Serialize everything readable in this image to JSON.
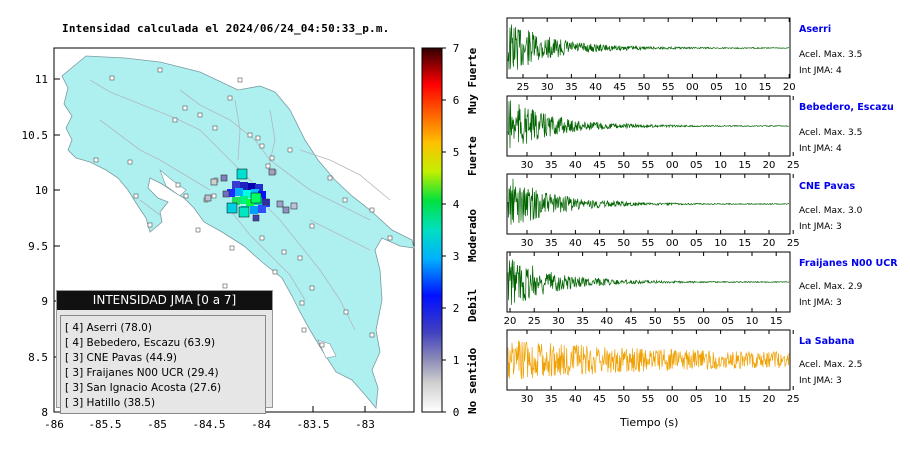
{
  "title": "Intensidad calculada el 2024/06/24_04:50:33_p.m.",
  "map": {
    "lon_ticks": [
      "-86",
      "-85.5",
      "-85",
      "-84.5",
      "-84",
      "-83.5",
      "-83"
    ],
    "lat_ticks": [
      "8",
      "8.5",
      "9",
      "9.5",
      "10",
      "10.5",
      "11"
    ],
    "land_color": "#aef0f0",
    "sea_color": "#ffffff"
  },
  "colorbar": {
    "ticks": [
      "0",
      "1",
      "2",
      "3",
      "4",
      "5",
      "6",
      "7"
    ],
    "categories": [
      "No sentido",
      "Debil",
      "Moderado",
      "Fuerte",
      "Muy Fuerte"
    ]
  },
  "legend": {
    "title": "INTENSIDAD JMA [0 a 7]",
    "entries": [
      "[ 4] Aserri (78.0)",
      "[ 4] Bebedero, Escazu (63.9)",
      "[ 3] CNE Pavas (44.9)",
      "[ 3] Fraijanes N00 UCR (29.4)",
      "[ 3] San Ignacio Acosta (27.6)",
      "[ 3] Hatillo (38.5)"
    ]
  },
  "waveforms": [
    {
      "name": "Aserri",
      "accel": "Acel. Max. 3.5",
      "jma": "Int JMA: 4",
      "color": "#006400",
      "ticks": [
        "25",
        "30",
        "35",
        "40",
        "45",
        "50",
        "55",
        "00",
        "05",
        "10",
        "15",
        "20"
      ],
      "tick_start": 25
    },
    {
      "name": "Bebedero, Escazu",
      "accel": "Acel. Max. 3.5",
      "jma": "Int JMA: 4",
      "color": "#006400",
      "ticks": [
        "30",
        "35",
        "40",
        "45",
        "50",
        "55",
        "00",
        "05",
        "10",
        "15",
        "20",
        "25"
      ],
      "tick_start": 28
    },
    {
      "name": "CNE Pavas",
      "accel": "Acel. Max. 3.0",
      "jma": "Int JMA: 3",
      "color": "#006400",
      "ticks": [
        "30",
        "35",
        "40",
        "45",
        "50",
        "55",
        "00",
        "05",
        "10",
        "15",
        "20",
        "25"
      ],
      "tick_start": 28
    },
    {
      "name": "Fraijanes N00 UCR",
      "accel": "Acel. Max. 2.9",
      "jma": "Int JMA: 3",
      "color": "#006400",
      "ticks": [
        "20",
        "25",
        "30",
        "35",
        "40",
        "45",
        "50",
        "55",
        "00",
        "05",
        "10",
        "15"
      ],
      "tick_start": 21
    },
    {
      "name": "La Sabana",
      "accel": "Acel. Max. 2.5",
      "jma": "Int JMA: 3",
      "color": "#f0a000",
      "ticks": [
        "30",
        "35",
        "40",
        "45",
        "50",
        "55",
        "00",
        "05",
        "10",
        "15",
        "20",
        "25"
      ],
      "tick_start": 28
    }
  ],
  "time_axis_title": "Tiempo (s)"
}
